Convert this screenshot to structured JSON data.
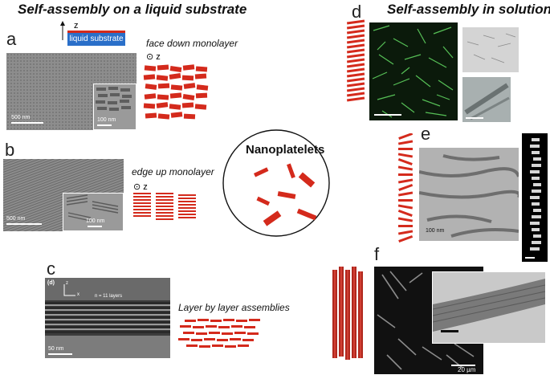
{
  "headings": {
    "liquid": "Self-assembly on a liquid substrate",
    "solution": "Self-assembly in solution"
  },
  "panels": {
    "a": {
      "letter": "a",
      "axis_label": "z",
      "substrate_label": "liquid substrate",
      "caption": "face down monolayer",
      "z_label": "z",
      "scale_main": "500 nm",
      "scale_inset": "100 nm"
    },
    "b": {
      "letter": "b",
      "caption": "edge up monolayer",
      "z_label": "z",
      "scale_main": "500 nm",
      "scale_inset": "100 nm"
    },
    "c": {
      "letter": "c",
      "tag": "(d)",
      "axis_z": "z",
      "axis_x": "x",
      "layers": "n = 11 layers",
      "scale": "50 nm",
      "caption": "Layer by layer assemblies"
    },
    "center": {
      "title": "Nanoplatelets"
    },
    "d": {
      "letter": "d"
    },
    "e": {
      "letter": "e",
      "scale": "100 nm"
    },
    "f": {
      "letter": "f",
      "scale": "20 µm"
    }
  },
  "colors": {
    "platelet_red": "#d42a1c",
    "substrate_blue": "#2a6fc9",
    "fluorescence_green": "#5fd35f"
  }
}
